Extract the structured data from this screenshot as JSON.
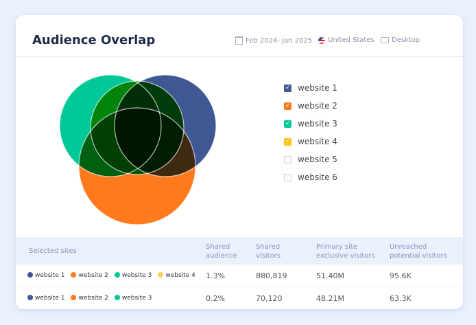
{
  "header": {
    "title": "Audience Overlap",
    "date_range": "Feb 2024- Jan 2025",
    "country": "United States",
    "device": "Desktop"
  },
  "legend": [
    {
      "label": "website 1",
      "checked": true,
      "color": "#3f5894"
    },
    {
      "label": "website 2",
      "checked": true,
      "color": "#ff7a1c"
    },
    {
      "label": "website 3",
      "checked": true,
      "color": "#00c896"
    },
    {
      "label": "website 4",
      "checked": true,
      "color": "#ffc21a"
    },
    {
      "label": "website 5",
      "checked": false,
      "color": "#c5cbe0"
    },
    {
      "label": "website 6",
      "checked": false,
      "color": "#c5cbe0"
    }
  ],
  "table": {
    "headers": [
      "Selected sites",
      "Shared audience",
      "Shared visitors",
      "Primary site exclusive visitors",
      "Unreached potential visitors"
    ],
    "rows": [
      {
        "sites": [
          "website 1",
          "website 2",
          "website 3",
          "website 4"
        ],
        "shared_audience": "1.3%",
        "shared_visitors": "880,819",
        "exclusive": "51.40M",
        "unreached": "95.6K"
      },
      {
        "sites": [
          "website 1",
          "website 2",
          "website 3"
        ],
        "shared_audience": "0.2%",
        "shared_visitors": "70,120",
        "exclusive": "48.21M",
        "unreached": "63.3K"
      }
    ]
  }
}
